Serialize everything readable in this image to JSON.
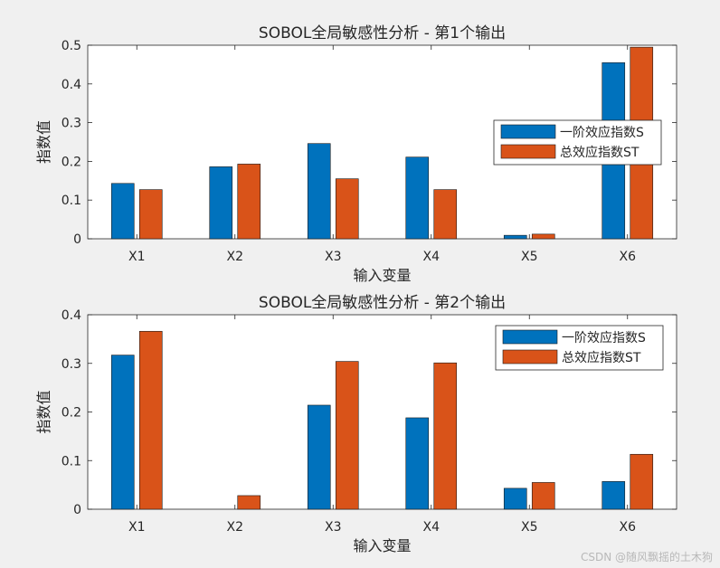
{
  "chart_data": [
    {
      "type": "bar",
      "title": "SOBOL全局敏感性分析 - 第1个输出",
      "xlabel": "输入变量",
      "ylabel": "指数值",
      "categories": [
        "X1",
        "X2",
        "X3",
        "X4",
        "X5",
        "X6"
      ],
      "series": [
        {
          "name": "一阶效应指数S",
          "color": "#0072BD",
          "values": [
            0.143,
            0.186,
            0.246,
            0.211,
            0.009,
            0.455
          ]
        },
        {
          "name": "总效应指数ST",
          "color": "#D95319",
          "values": [
            0.127,
            0.193,
            0.155,
            0.127,
            0.012,
            0.495
          ]
        }
      ],
      "ylim": [
        0,
        0.5
      ],
      "yticks": [
        "0",
        "0.1",
        "0.2",
        "0.3",
        "0.4",
        "0.5"
      ],
      "legend_position": "right",
      "grid": false
    },
    {
      "type": "bar",
      "title": "SOBOL全局敏感性分析 - 第2个输出",
      "xlabel": "输入变量",
      "ylabel": "指数值",
      "categories": [
        "X1",
        "X2",
        "X3",
        "X4",
        "X5",
        "X6"
      ],
      "series": [
        {
          "name": "一阶效应指数S",
          "color": "#0072BD",
          "values": [
            0.317,
            0.0,
            0.214,
            0.188,
            0.043,
            0.057
          ]
        },
        {
          "name": "总效应指数ST",
          "color": "#D95319",
          "values": [
            0.366,
            0.028,
            0.304,
            0.301,
            0.055,
            0.113
          ]
        }
      ],
      "ylim": [
        0,
        0.4
      ],
      "yticks": [
        "0",
        "0.1",
        "0.2",
        "0.3",
        "0.4"
      ],
      "legend_position": "top-right",
      "grid": false
    }
  ],
  "watermark": "CSDN @随风飘摇的土木狗"
}
